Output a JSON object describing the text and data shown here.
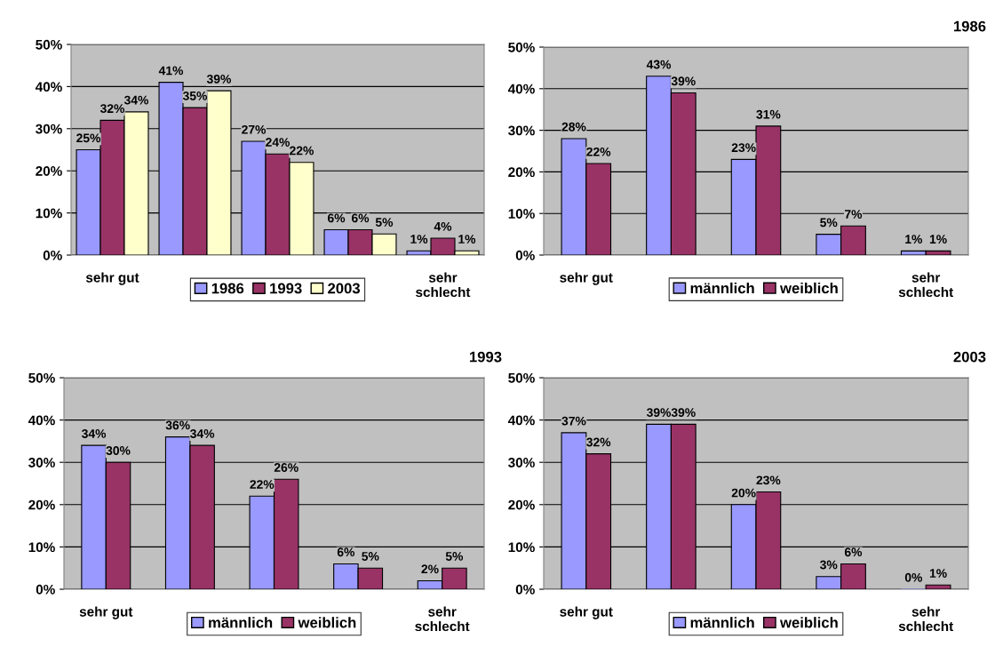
{
  "chart_data": [
    {
      "type": "bar",
      "categories": [
        "sehr gut",
        null,
        null,
        null,
        "sehr\nschlecht"
      ],
      "ylim": [
        0,
        50
      ],
      "yticks": [
        {
          "value": 0,
          "label": "0%"
        },
        {
          "value": 10,
          "label": "10%"
        },
        {
          "value": 20,
          "label": "20%"
        },
        {
          "value": 30,
          "label": "30%"
        },
        {
          "value": 40,
          "label": "40%"
        },
        {
          "value": 50,
          "label": "50%"
        }
      ],
      "grid": "y",
      "legend": "bottom",
      "series": [
        {
          "name": "1986",
          "color": "#9999ff",
          "values": [
            25,
            41,
            27,
            6,
            1
          ],
          "value_labels": [
            "25%",
            "41%",
            "27%",
            "6%",
            "1%"
          ]
        },
        {
          "name": "1993",
          "color": "#993366",
          "values": [
            32,
            35,
            24,
            6,
            4
          ],
          "value_labels": [
            "32%",
            "35%",
            "24%",
            "6%",
            "4%"
          ]
        },
        {
          "name": "2003",
          "color": "#ffffcc",
          "values": [
            34,
            39,
            22,
            5,
            1
          ],
          "value_labels": [
            "34%",
            "39%",
            "22%",
            "5%",
            "1%"
          ]
        }
      ]
    },
    {
      "type": "bar",
      "title": "1986",
      "categories": [
        "sehr gut",
        null,
        null,
        null,
        "sehr\nschlecht"
      ],
      "ylim": [
        0,
        50
      ],
      "yticks": [
        {
          "value": 0,
          "label": "0%"
        },
        {
          "value": 10,
          "label": "10%"
        },
        {
          "value": 20,
          "label": "20%"
        },
        {
          "value": 30,
          "label": "30%"
        },
        {
          "value": 40,
          "label": "40%"
        },
        {
          "value": 50,
          "label": "50%"
        }
      ],
      "grid": "y",
      "legend": "bottom",
      "series": [
        {
          "name": "männlich",
          "color": "#9999ff",
          "values": [
            28,
            43,
            23,
            5,
            1
          ],
          "value_labels": [
            "28%",
            "43%",
            "23%",
            "5%",
            "1%"
          ]
        },
        {
          "name": "weiblich",
          "color": "#993366",
          "values": [
            22,
            39,
            31,
            7,
            1
          ],
          "value_labels": [
            "22%",
            "39%",
            "31%",
            "7%",
            "1%"
          ]
        }
      ]
    },
    {
      "type": "bar",
      "title": "1993",
      "categories": [
        "sehr gut",
        null,
        null,
        null,
        "sehr\nschlecht"
      ],
      "ylim": [
        0,
        50
      ],
      "yticks": [
        {
          "value": 0,
          "label": "0%"
        },
        {
          "value": 10,
          "label": "10%"
        },
        {
          "value": 20,
          "label": "20%"
        },
        {
          "value": 30,
          "label": "30%"
        },
        {
          "value": 40,
          "label": "40%"
        },
        {
          "value": 50,
          "label": "50%"
        }
      ],
      "grid": "y",
      "legend": "bottom",
      "series": [
        {
          "name": "männlich",
          "color": "#9999ff",
          "values": [
            34,
            36,
            22,
            6,
            2
          ],
          "value_labels": [
            "34%",
            "36%",
            "22%",
            "6%",
            "2%"
          ]
        },
        {
          "name": "weiblich",
          "color": "#993366",
          "values": [
            30,
            34,
            26,
            5,
            5
          ],
          "value_labels": [
            "30%",
            "34%",
            "26%",
            "5%",
            "5%"
          ]
        }
      ]
    },
    {
      "type": "bar",
      "title": "2003",
      "categories": [
        "sehr gut",
        null,
        null,
        null,
        "sehr\nschlecht"
      ],
      "ylim": [
        0,
        50
      ],
      "yticks": [
        {
          "value": 0,
          "label": "0%"
        },
        {
          "value": 10,
          "label": "10%"
        },
        {
          "value": 20,
          "label": "20%"
        },
        {
          "value": 30,
          "label": "30%"
        },
        {
          "value": 40,
          "label": "40%"
        },
        {
          "value": 50,
          "label": "50%"
        }
      ],
      "grid": "y",
      "legend": "bottom",
      "series": [
        {
          "name": "männlich",
          "color": "#9999ff",
          "values": [
            37,
            39,
            20,
            3,
            0
          ],
          "value_labels": [
            "37%",
            "39%",
            "20%",
            "3%",
            "0%"
          ]
        },
        {
          "name": "weiblich",
          "color": "#993366",
          "values": [
            32,
            39,
            23,
            6,
            1
          ],
          "value_labels": [
            "32%",
            "39%",
            "23%",
            "6%",
            "1%"
          ]
        }
      ]
    }
  ]
}
